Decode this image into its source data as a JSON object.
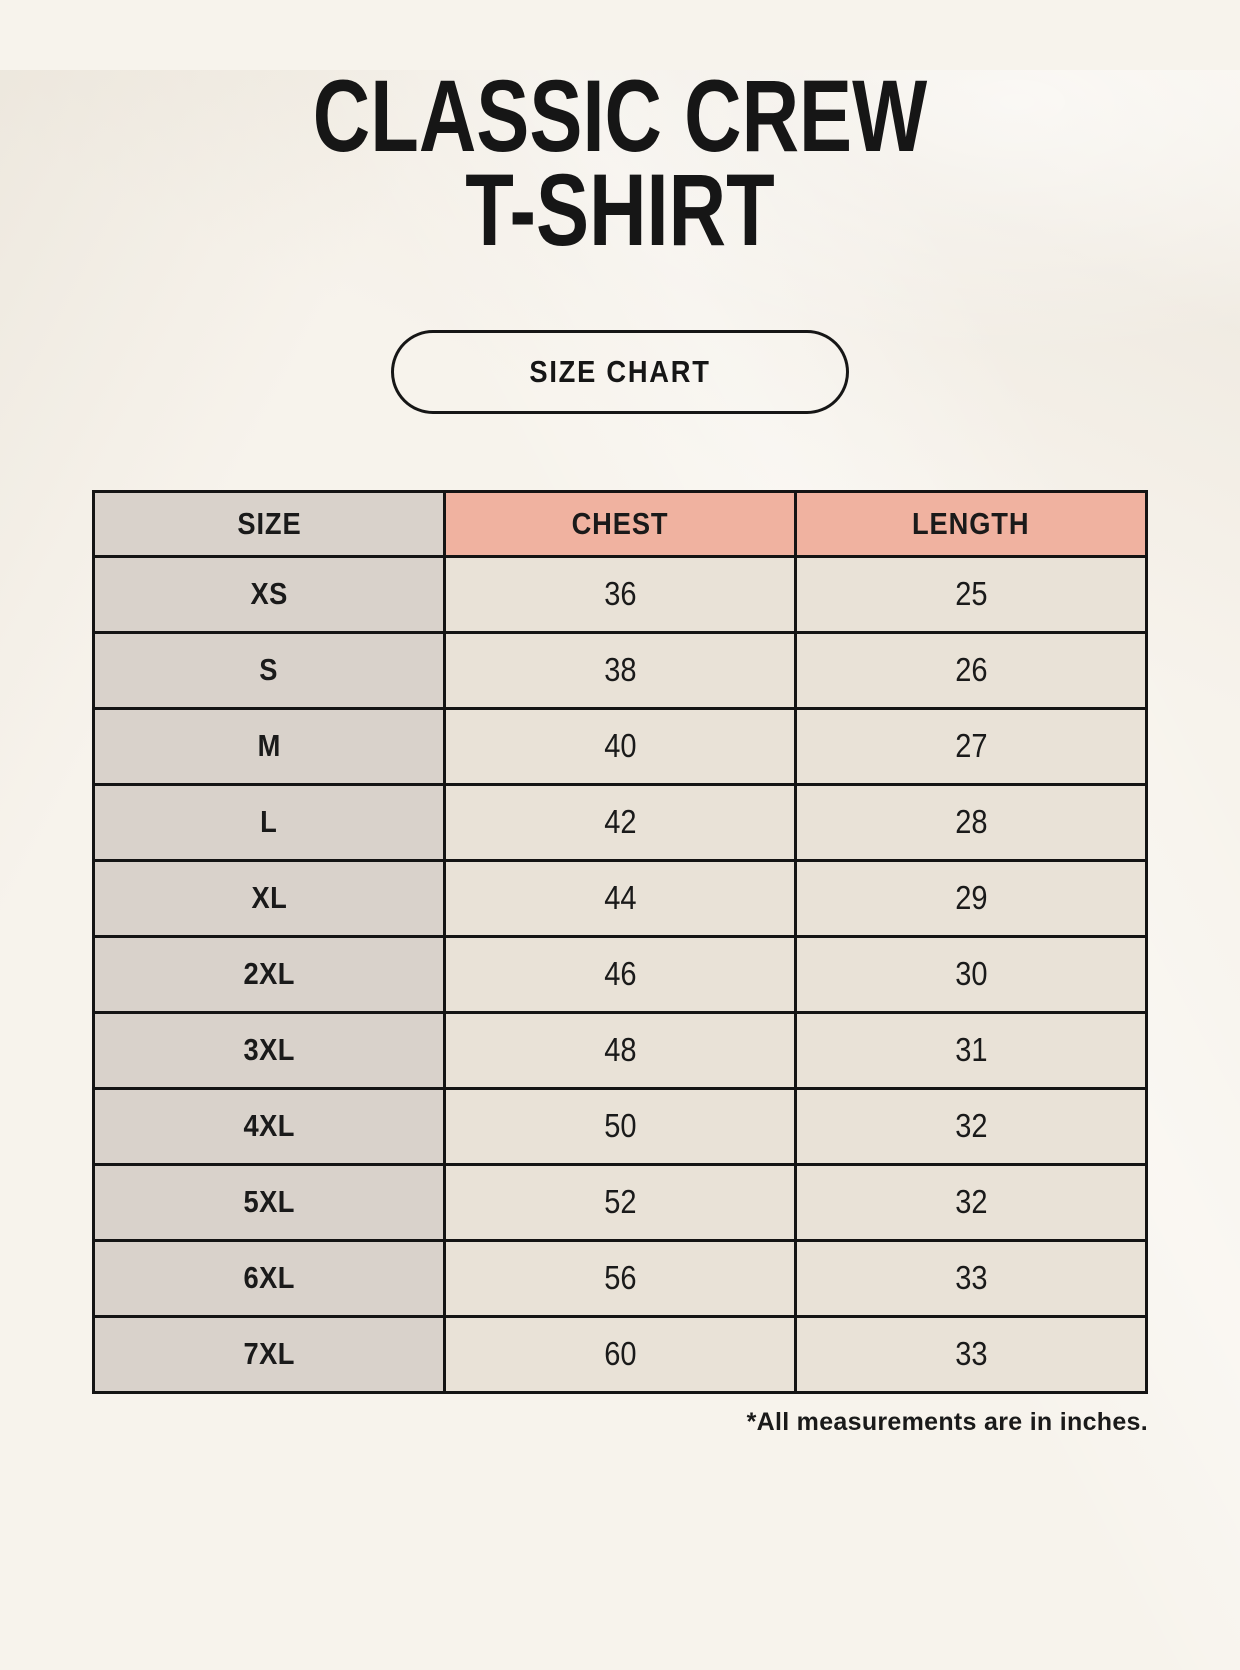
{
  "header": {
    "title_line1": "CLASSIC CREW",
    "title_line2": "T-SHIRT",
    "size_chart_button": "SIZE CHART"
  },
  "footnote": "*All measurements are in inches.",
  "colors": {
    "page_bg": "#f7f3ec",
    "accent_salmon": "#f0b2a0",
    "taupe": "#d9d2cb",
    "cream_cell": "#e9e2d7",
    "border_black": "#141414"
  },
  "chart_data": {
    "type": "table",
    "units": "inches",
    "columns": [
      "SIZE",
      "CHEST",
      "LENGTH"
    ],
    "rows": [
      [
        "XS",
        "36",
        "25"
      ],
      [
        "S",
        "38",
        "26"
      ],
      [
        "M",
        "40",
        "27"
      ],
      [
        "L",
        "42",
        "28"
      ],
      [
        "XL",
        "44",
        "29"
      ],
      [
        "2XL",
        "46",
        "30"
      ],
      [
        "3XL",
        "48",
        "31"
      ],
      [
        "4XL",
        "50",
        "32"
      ],
      [
        "5XL",
        "52",
        "32"
      ],
      [
        "6XL",
        "56",
        "33"
      ],
      [
        "7XL",
        "60",
        "33"
      ]
    ]
  }
}
